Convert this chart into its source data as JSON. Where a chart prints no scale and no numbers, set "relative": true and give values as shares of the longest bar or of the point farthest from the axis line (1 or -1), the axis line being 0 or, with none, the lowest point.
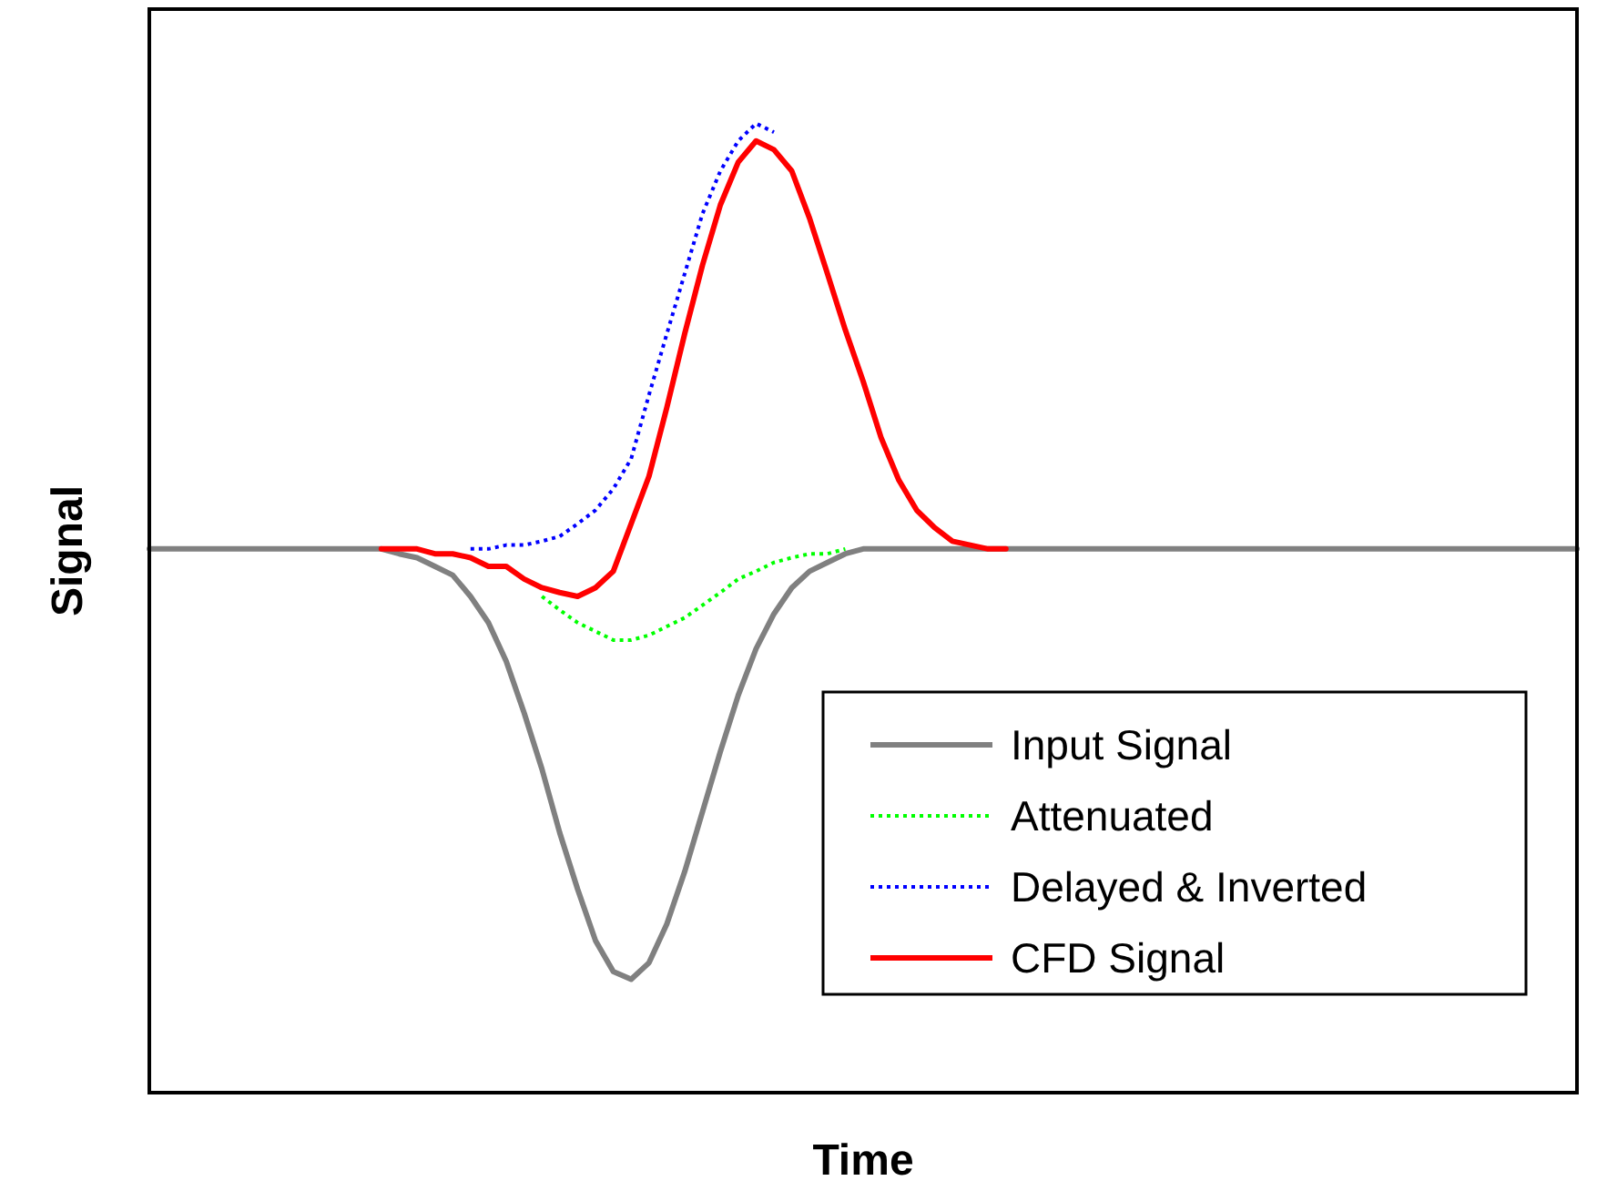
{
  "chart_data": {
    "type": "line",
    "relative": true,
    "xlabel": "Time",
    "ylabel": "Signal",
    "legend": "bottom right",
    "categories": [
      null,
      null,
      null,
      null,
      null,
      null,
      null,
      null,
      null,
      null,
      null,
      null,
      null,
      null,
      null,
      null,
      null,
      null,
      null,
      null,
      null,
      null,
      null,
      null,
      null,
      null,
      null,
      null,
      null,
      null,
      null,
      null,
      null,
      null,
      null,
      null,
      null,
      null,
      null,
      null,
      null,
      null,
      null,
      null,
      null,
      null,
      null,
      null,
      null,
      null,
      null,
      null,
      null,
      null,
      null,
      null,
      null,
      null,
      null,
      null,
      null,
      null,
      null,
      null,
      null,
      null,
      null,
      null,
      null,
      null,
      null,
      null,
      null,
      null,
      null,
      null,
      null,
      null,
      null,
      null,
      null
    ],
    "series": [
      {
        "name": "Input Signal",
        "color": "#808080",
        "line_style": "solid",
        "values": [
          0.561,
          0.561,
          0.561,
          0.561,
          0.561,
          0.561,
          0.561,
          0.561,
          0.561,
          0.561,
          0.561,
          0.561,
          0.561,
          0.561,
          0.556,
          0.552,
          0.543,
          0.534,
          0.512,
          0.485,
          0.445,
          0.392,
          0.334,
          0.268,
          0.21,
          0.157,
          0.125,
          0.117,
          0.134,
          0.174,
          0.228,
          0.29,
          0.352,
          0.41,
          0.458,
          0.494,
          0.521,
          0.538,
          0.547,
          0.556,
          0.561,
          0.561,
          0.561,
          0.561,
          0.561,
          0.561,
          0.561,
          0.561,
          0.561,
          0.561,
          0.561,
          0.561,
          0.561,
          0.561,
          0.561,
          0.561,
          0.561,
          0.561,
          0.561,
          0.561,
          0.561,
          0.561,
          0.561,
          0.561,
          0.561,
          0.561,
          0.561,
          0.561,
          0.561,
          0.561,
          0.561,
          0.561,
          0.561,
          0.561,
          0.561,
          0.561,
          0.561,
          0.561,
          0.561,
          0.561,
          0.561
        ]
      },
      {
        "name": "Attenuated",
        "color": "#00ff00",
        "line_style": "dotted",
        "values": [
          null,
          null,
          null,
          null,
          null,
          null,
          null,
          null,
          null,
          null,
          null,
          null,
          null,
          null,
          null,
          null,
          null,
          null,
          null,
          null,
          null,
          null,
          0.512,
          0.498,
          0.485,
          0.476,
          0.467,
          0.467,
          0.472,
          0.481,
          0.49,
          0.503,
          0.516,
          0.53,
          0.538,
          0.547,
          0.552,
          0.556,
          0.556,
          0.561,
          null,
          null,
          null,
          null,
          null,
          null,
          null,
          null,
          null,
          null,
          null,
          null,
          null,
          null,
          null,
          null,
          null,
          null,
          null,
          null,
          null,
          null,
          null,
          null,
          null,
          null,
          null,
          null,
          null,
          null,
          null,
          null,
          null,
          null,
          null,
          null,
          null,
          null,
          null,
          null,
          null
        ]
      },
      {
        "name": "Delayed & Inverted",
        "color": "#0000ff",
        "line_style": "dotted",
        "values": [
          null,
          null,
          null,
          null,
          null,
          null,
          null,
          null,
          null,
          null,
          null,
          null,
          null,
          null,
          null,
          null,
          null,
          null,
          0.561,
          0.561,
          0.565,
          0.565,
          0.569,
          0.574,
          0.587,
          0.601,
          0.623,
          0.654,
          0.72,
          0.783,
          0.845,
          0.907,
          0.951,
          0.982,
          1.0,
          0.991,
          null,
          null,
          null,
          null,
          null,
          null,
          null,
          null,
          null,
          null,
          null,
          null,
          null,
          null,
          null,
          null,
          null,
          null,
          null,
          null,
          null,
          null,
          null,
          null,
          null,
          null,
          null,
          null,
          null,
          null,
          null,
          null,
          null,
          null,
          null,
          null,
          null,
          null,
          null,
          null,
          null,
          null,
          null,
          null,
          null
        ]
      },
      {
        "name": "CFD Signal",
        "color": "#ff0000",
        "line_style": "solid",
        "values": [
          null,
          null,
          null,
          null,
          null,
          null,
          null,
          null,
          null,
          null,
          null,
          null,
          null,
          0.561,
          0.561,
          0.561,
          0.556,
          0.556,
          0.552,
          0.543,
          0.543,
          0.53,
          0.521,
          0.516,
          0.512,
          0.521,
          0.538,
          0.587,
          0.636,
          0.707,
          0.783,
          0.854,
          0.916,
          0.96,
          0.982,
          0.973,
          0.951,
          0.902,
          0.845,
          0.787,
          0.734,
          0.676,
          0.632,
          0.601,
          0.583,
          0.569,
          0.565,
          0.561,
          0.561,
          null,
          null,
          null,
          null,
          null,
          null,
          null,
          null,
          null,
          null,
          null,
          null,
          null,
          null,
          null,
          null,
          null,
          null,
          null,
          null,
          null,
          null,
          null,
          null,
          null,
          null,
          null,
          null,
          null,
          null,
          null,
          null
        ]
      }
    ]
  }
}
